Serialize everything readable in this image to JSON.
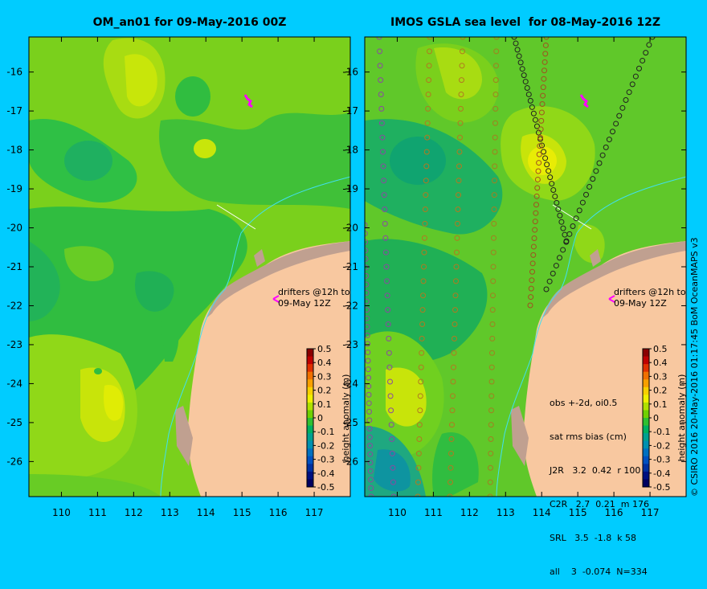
{
  "panels": [
    {
      "title": "OM_an01 for 09-May-2016 00Z",
      "drifters_label": [
        "drifters @12h to",
        "09-May 12Z"
      ]
    },
    {
      "title": "IMOS GSLA sea level  for 08-May-2016 12Z",
      "drifters_label": [
        "drifters @12h to",
        "09-May 12Z"
      ],
      "stats": {
        "header": [
          "obs +-2d, oi0.5",
          "sat rms bias (cm)"
        ],
        "rows": [
          "J2R   3.2  0.42  r 100",
          "C2R   2.7  0.21  m 176",
          "SRL   3.5  -1.8  k 58",
          "all    3  -0.074  N=334"
        ]
      }
    }
  ],
  "axes": {
    "x_ticks": [
      "110",
      "111",
      "112",
      "113",
      "114",
      "115",
      "116",
      "117"
    ],
    "y_ticks": [
      "-16",
      "-17",
      "-18",
      "-19",
      "-20",
      "-21",
      "-22",
      "-23",
      "-24",
      "-25",
      "-26"
    ],
    "x_range": [
      109.1,
      118.0
    ],
    "y_range": [
      -26.9,
      -15.1
    ]
  },
  "colorbar": {
    "label": "height anomaly (m)",
    "ticks": [
      "0.5",
      "0.4",
      "0.3",
      "0.2",
      "0.1",
      "0",
      "-0.1",
      "-0.2",
      "-0.3",
      "-0.4",
      "-0.5"
    ],
    "colors": [
      "#8b0000",
      "#c00000",
      "#e03000",
      "#f07000",
      "#f8a000",
      "#f8d000",
      "#f0f000",
      "#b0e000",
      "#70d000",
      "#30c030",
      "#00b060",
      "#00a090",
      "#0090b0",
      "#0070c0",
      "#0050c0",
      "#0030a0",
      "#001080",
      "#000060"
    ]
  },
  "colors": {
    "land": "#f8c8a0",
    "coast_shelf": "#c0a090",
    "background": "#00ccff"
  },
  "credit": "© CSIRO 2016   20-May-2016 01:17:45 BoM OceanMAPS v3"
}
